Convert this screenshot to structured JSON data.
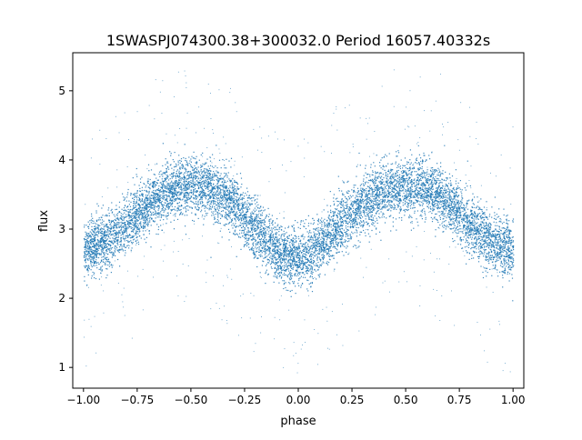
{
  "chart_data": {
    "type": "scatter",
    "title": "1SWASPJ074300.38+300032.0 Period 16057.40332s",
    "xlabel": "phase",
    "ylabel": "flux",
    "xlim": [
      -1.05,
      1.05
    ],
    "ylim": [
      0.7,
      5.55
    ],
    "xticks": [
      -1.0,
      -0.75,
      -0.5,
      -0.25,
      0.0,
      0.25,
      0.5,
      0.75,
      1.0
    ],
    "xtick_labels": [
      "−1.00",
      "−0.75",
      "−0.50",
      "−0.25",
      "0.00",
      "0.25",
      "0.50",
      "0.75",
      "1.00"
    ],
    "yticks": [
      1,
      2,
      3,
      4,
      5
    ],
    "ytick_labels": [
      "1",
      "2",
      "3",
      "4",
      "5"
    ],
    "grid": false,
    "legend": "none",
    "marker_color": "#1f77b4",
    "series": [
      {
        "phase": [
          -1.0,
          -0.95,
          -0.9,
          -0.85,
          -0.8,
          -0.75,
          -0.7,
          -0.65,
          -0.6,
          -0.55,
          -0.5,
          -0.45,
          -0.4,
          -0.35,
          -0.3,
          -0.25,
          -0.2,
          -0.15,
          -0.1,
          -0.05,
          0.0,
          0.05,
          0.1,
          0.15,
          0.2,
          0.25,
          0.3,
          0.35,
          0.4,
          0.45,
          0.5,
          0.55,
          0.6,
          0.65,
          0.7,
          0.75,
          0.8,
          0.85,
          0.9,
          0.95,
          1.0
        ],
        "flux_median": [
          2.72,
          2.75,
          2.82,
          2.93,
          3.07,
          3.22,
          3.36,
          3.48,
          3.57,
          3.62,
          3.63,
          3.62,
          3.57,
          3.48,
          3.34,
          3.17,
          2.99,
          2.82,
          2.68,
          2.6,
          2.6,
          2.64,
          2.76,
          2.92,
          3.09,
          3.25,
          3.38,
          3.48,
          3.55,
          3.6,
          3.62,
          3.62,
          3.58,
          3.5,
          3.38,
          3.23,
          3.07,
          2.92,
          2.81,
          2.74,
          2.72
        ],
        "band_halfwidth": 0.33
      }
    ]
  }
}
